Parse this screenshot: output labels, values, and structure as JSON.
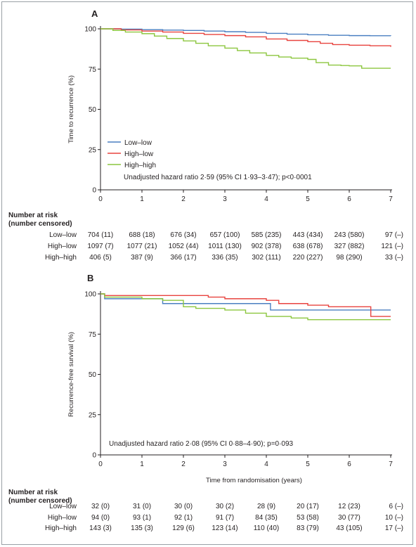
{
  "chart_data": [
    {
      "type": "line",
      "panel": "A",
      "ylabel": "Time to recurrence (%)",
      "xlabel": "",
      "xlim": [
        0,
        7
      ],
      "ylim": [
        0,
        100
      ],
      "xticks": [
        "0",
        "1",
        "2",
        "3",
        "4",
        "5",
        "6",
        "7"
      ],
      "yticks": [
        "0",
        "25",
        "50",
        "75",
        "100"
      ],
      "legend_position": "lower-left",
      "annotation": "Unadjusted hazard ratio 2·59 (95% CI 1·93–3·47); p<0·0001",
      "series": [
        {
          "name": "Low–low",
          "color": "#4a7fc1",
          "x": [
            0,
            0.5,
            1,
            1.5,
            2,
            2.5,
            3,
            3.5,
            4,
            4.5,
            5,
            5.5,
            6,
            6.5,
            7
          ],
          "y": [
            100,
            99.8,
            99.5,
            99.2,
            99,
            98.6,
            98.2,
            97.8,
            97.2,
            96.7,
            96.3,
            96,
            95.8,
            95.7,
            95.6
          ]
        },
        {
          "name": "High–low",
          "color": "#e8433f",
          "x": [
            0,
            0.5,
            1,
            1.5,
            2,
            2.5,
            3,
            3.5,
            4,
            4.5,
            5,
            5.3,
            5.6,
            6,
            6.5,
            7
          ],
          "y": [
            100,
            99.3,
            98.6,
            98,
            97.2,
            96.5,
            95.8,
            95,
            93.7,
            92.8,
            92,
            91,
            90.2,
            89.8,
            89.5,
            88.8
          ]
        },
        {
          "name": "High–high",
          "color": "#8cc63f",
          "x": [
            0,
            0.3,
            0.6,
            1,
            1.3,
            1.6,
            2,
            2.3,
            2.6,
            3,
            3.3,
            3.6,
            4,
            4.3,
            4.6,
            5,
            5.2,
            5.5,
            5.8,
            6,
            6.3,
            7
          ],
          "y": [
            100,
            99,
            98,
            97,
            95.5,
            94,
            92.5,
            91,
            89.5,
            88,
            86.5,
            85,
            83.5,
            82.5,
            81.8,
            81,
            79,
            77.5,
            77.2,
            77,
            75.5,
            75.5
          ]
        }
      ],
      "risk_table": {
        "title": [
          "Number at risk",
          "(number censored)"
        ],
        "rows": [
          {
            "label": "Low–low",
            "values": [
              "704 (11)",
              "688 (18)",
              "676 (34)",
              "657 (100)",
              "585 (235)",
              "443 (434)",
              "243 (580)",
              "97 (–)"
            ]
          },
          {
            "label": "High–low",
            "values": [
              "1097 (7)",
              "1077 (21)",
              "1052 (44)",
              "1011 (130)",
              "902 (378)",
              "638 (678)",
              "327 (882)",
              "121 (–)"
            ]
          },
          {
            "label": "High–high",
            "values": [
              "406 (5)",
              "387 (9)",
              "366 (17)",
              "336 (35)",
              "302 (111)",
              "220 (227)",
              "98 (290)",
              "33 (–)"
            ]
          }
        ]
      }
    },
    {
      "type": "line",
      "panel": "B",
      "ylabel": "Recurrence-free survival (%)",
      "xlabel": "Time from randomisation (years)",
      "xlim": [
        0,
        7
      ],
      "ylim": [
        0,
        100
      ],
      "xticks": [
        "0",
        "1",
        "2",
        "3",
        "4",
        "5",
        "6",
        "7"
      ],
      "yticks": [
        "0",
        "25",
        "50",
        "75",
        "100"
      ],
      "annotation": "Unadjusted hazard ratio 2·08 (95% CI 0·88–4·90); p=0·093",
      "series": [
        {
          "name": "Low–low",
          "color": "#4a7fc1",
          "x": [
            0,
            0.1,
            1,
            1.45,
            1.5,
            3.3,
            4.05,
            4.1,
            6.5,
            7
          ],
          "y": [
            100,
            97,
            97,
            97,
            94,
            94,
            94,
            90,
            90,
            90
          ]
        },
        {
          "name": "High–low",
          "color": "#e8433f",
          "x": [
            0,
            0.1,
            1,
            2,
            2.6,
            3,
            4,
            4.3,
            5,
            5.5,
            6.5,
            6.52,
            7
          ],
          "y": [
            100,
            99,
            99,
            99,
            98,
            97,
            96,
            94,
            93,
            92,
            92,
            86,
            86
          ]
        },
        {
          "name": "High–high",
          "color": "#8cc63f",
          "x": [
            0,
            0.1,
            1,
            1.5,
            2,
            2.3,
            3,
            3.5,
            4,
            4.6,
            5,
            6,
            7
          ],
          "y": [
            100,
            98,
            97,
            96,
            92,
            91,
            90,
            88,
            86,
            85,
            84,
            84,
            84
          ]
        }
      ],
      "risk_table": {
        "title": [
          "Number at risk",
          "(number censored)"
        ],
        "rows": [
          {
            "label": "Low–low",
            "values": [
              "32 (0)",
              "31 (0)",
              "30 (0)",
              "30 (2)",
              "28 (9)",
              "20 (17)",
              "12 (23)",
              "6 (–)"
            ]
          },
          {
            "label": "High–low",
            "values": [
              "94 (0)",
              "93 (1)",
              "92 (1)",
              "91 (7)",
              "84 (35)",
              "53 (58)",
              "30 (77)",
              "10 (–)"
            ]
          },
          {
            "label": "High–high",
            "values": [
              "143 (3)",
              "135 (3)",
              "129 (6)",
              "123 (14)",
              "110 (40)",
              "83 (79)",
              "43 (105)",
              "17 (–)"
            ]
          }
        ]
      }
    }
  ]
}
